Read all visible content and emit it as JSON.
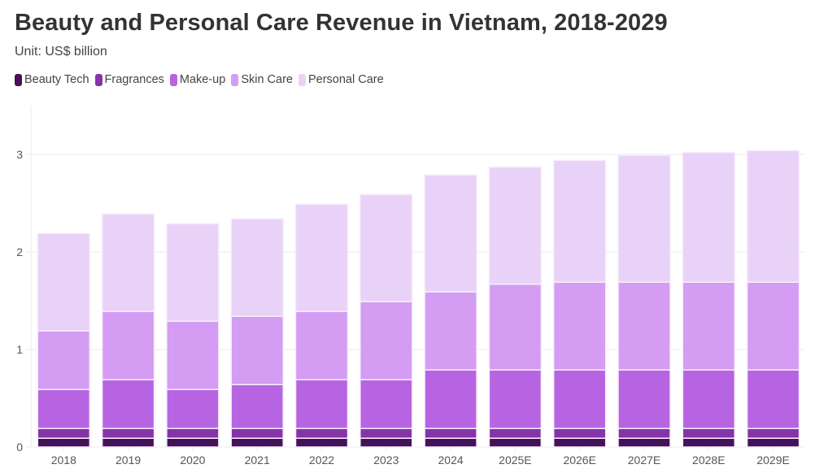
{
  "chart_data": {
    "type": "bar",
    "stacked": true,
    "title": "Beauty and Personal Care Revenue in Vietnam, 2018-2029",
    "subtitle": "Unit: US$ billion",
    "xlabel": "",
    "ylabel": "",
    "ylim": [
      0,
      3.4
    ],
    "yticks": [
      0,
      1,
      2,
      3
    ],
    "grid": true,
    "legend_position": "top-left",
    "categories": [
      "2018",
      "2019",
      "2020",
      "2021",
      "2022",
      "2023",
      "2024",
      "2025E",
      "2026E",
      "2027E",
      "2028E",
      "2029E"
    ],
    "series": [
      {
        "name": "Beauty Tech",
        "color": "#45125a",
        "values": [
          0.09,
          0.09,
          0.09,
          0.09,
          0.09,
          0.09,
          0.09,
          0.09,
          0.09,
          0.09,
          0.09,
          0.09
        ]
      },
      {
        "name": "Fragrances",
        "color": "#8633a8",
        "values": [
          0.1,
          0.1,
          0.1,
          0.1,
          0.1,
          0.1,
          0.1,
          0.1,
          0.1,
          0.1,
          0.1,
          0.1
        ]
      },
      {
        "name": "Make-up",
        "color": "#b764e3",
        "values": [
          0.4,
          0.5,
          0.4,
          0.45,
          0.5,
          0.5,
          0.6,
          0.6,
          0.6,
          0.6,
          0.6,
          0.6
        ]
      },
      {
        "name": "Skin Care",
        "color": "#d49cf2",
        "values": [
          0.6,
          0.7,
          0.7,
          0.7,
          0.7,
          0.8,
          0.8,
          0.88,
          0.9,
          0.9,
          0.9,
          0.9
        ]
      },
      {
        "name": "Personal Care",
        "color": "#e9d2f8",
        "values": [
          1.0,
          1.0,
          1.0,
          1.0,
          1.1,
          1.1,
          1.2,
          1.2,
          1.25,
          1.3,
          1.33,
          1.35
        ]
      }
    ]
  }
}
